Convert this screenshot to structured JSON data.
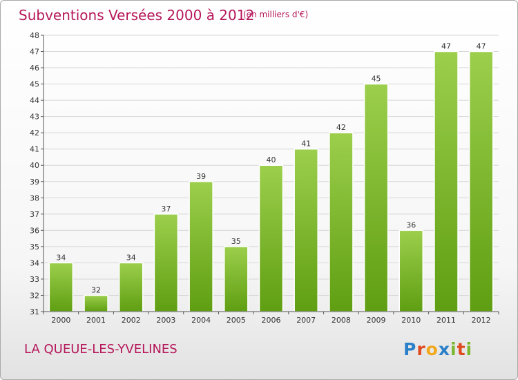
{
  "colors": {
    "title": "#b5175a",
    "bar_top": "#9ccf4c",
    "bar_bottom": "#5f9e12",
    "grid": "#d6d6d6",
    "axis": "#555555"
  },
  "logo": {
    "letters": [
      {
        "char": "P",
        "color": "#2a7fc9"
      },
      {
        "char": "r",
        "color": "#e04a1f"
      },
      {
        "char": "o",
        "color": "#f2a81d"
      },
      {
        "char": "x",
        "color": "#2a7fc9"
      },
      {
        "char": "i",
        "color": "#7cb82f"
      },
      {
        "char": "t",
        "color": "#e04a1f"
      },
      {
        "char": "i",
        "color": "#7cb82f"
      }
    ]
  },
  "chart_data": {
    "type": "bar",
    "title": "Subventions Versées 2000 à 2012",
    "subtitle": "(en milliers d'€)",
    "commune": "LA QUEUE-LES-YVELINES",
    "categories": [
      "2000",
      "2001",
      "2002",
      "2003",
      "2004",
      "2005",
      "2006",
      "2007",
      "2008",
      "2009",
      "2010",
      "2011",
      "2012"
    ],
    "values": [
      34,
      32,
      34,
      37,
      39,
      35,
      40,
      41,
      42,
      45,
      36,
      47,
      47
    ],
    "ylim": [
      31,
      48
    ],
    "yticks": [
      31,
      32,
      33,
      34,
      35,
      36,
      37,
      38,
      39,
      40,
      41,
      42,
      43,
      44,
      45,
      46,
      47,
      48
    ],
    "grid": true,
    "legend": "none"
  }
}
